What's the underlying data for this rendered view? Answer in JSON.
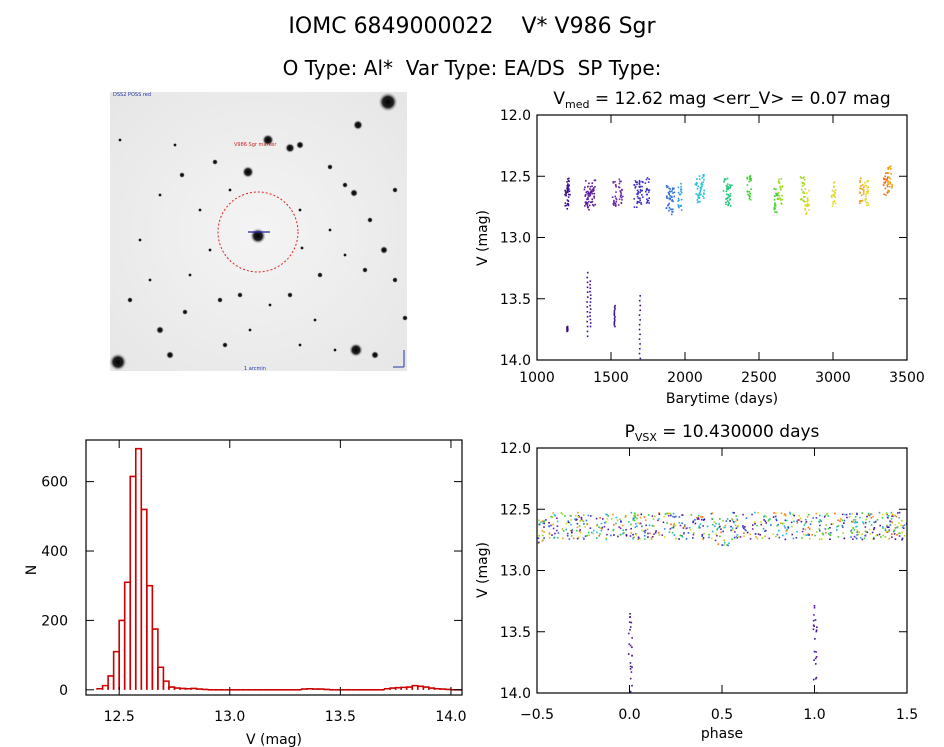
{
  "header": {
    "title_line1": "IOMC 6849000022    V* V986 Sgr",
    "title_line2": "O Type: Al*  Var Type: EA/DS  SP Type:"
  },
  "finder": {
    "label_tl": "DSS2 POSS red",
    "label_center": "V986 Sgr marker",
    "label_bottom": "1 arcmin"
  },
  "colors": {
    "axis": "#000000",
    "hist": "#cc0000",
    "palette": [
      "#3b0f8f",
      "#5a1a9e",
      "#6e2aa8",
      "#3a30c8",
      "#2f6fd8",
      "#2a9fe6",
      "#20c0d8",
      "#22c87a",
      "#3cd02a",
      "#9ad81c",
      "#e0d81a",
      "#f0a010",
      "#f07010"
    ]
  },
  "chart_data": [
    {
      "id": "lightcurve",
      "type": "scatter",
      "title_prefix": "V",
      "title_sub": "med",
      "title_rest": " = 12.62 mag <err_V> = 0.07 mag",
      "xlabel": "Barytime (days)",
      "ylabel": "V (mag)",
      "xlim": [
        1000,
        3500
      ],
      "ylim": [
        14.0,
        12.0
      ],
      "xticks": [
        1000,
        1500,
        2000,
        2500,
        3000,
        3500
      ],
      "yticks": [
        "12.0",
        "12.5",
        "13.0",
        "13.5",
        "14.0"
      ],
      "segments": [
        {
          "x": 1195,
          "y": 12.65,
          "c": 0
        },
        {
          "x": 1205,
          "y": 12.62,
          "c": 0
        },
        {
          "x": 1330,
          "y": 12.64,
          "c": 1
        },
        {
          "x": 1350,
          "y": 12.66,
          "c": 1
        },
        {
          "x": 1375,
          "y": 12.63,
          "c": 1
        },
        {
          "x": 1520,
          "y": 12.63,
          "c": 2
        },
        {
          "x": 1560,
          "y": 12.62,
          "c": 2
        },
        {
          "x": 1665,
          "y": 12.64,
          "c": 3
        },
        {
          "x": 1700,
          "y": 12.63,
          "c": 3
        },
        {
          "x": 1740,
          "y": 12.61,
          "c": 3
        },
        {
          "x": 1880,
          "y": 12.68,
          "c": 4
        },
        {
          "x": 1910,
          "y": 12.7,
          "c": 4
        },
        {
          "x": 1960,
          "y": 12.66,
          "c": 5
        },
        {
          "x": 2080,
          "y": 12.6,
          "c": 6
        },
        {
          "x": 2110,
          "y": 12.58,
          "c": 6
        },
        {
          "x": 2270,
          "y": 12.62,
          "c": 7
        },
        {
          "x": 2300,
          "y": 12.64,
          "c": 7
        },
        {
          "x": 2430,
          "y": 12.6,
          "c": 8
        },
        {
          "x": 2610,
          "y": 12.7,
          "c": 8
        },
        {
          "x": 2640,
          "y": 12.62,
          "c": 9
        },
        {
          "x": 2790,
          "y": 12.6,
          "c": 9
        },
        {
          "x": 2820,
          "y": 12.7,
          "c": 10
        },
        {
          "x": 3000,
          "y": 12.64,
          "c": 10
        },
        {
          "x": 3190,
          "y": 12.62,
          "c": 11
        },
        {
          "x": 3220,
          "y": 12.63,
          "c": 10
        },
        {
          "x": 3350,
          "y": 12.56,
          "c": 12
        },
        {
          "x": 3380,
          "y": 12.52,
          "c": 11
        }
      ],
      "dips": [
        {
          "x": 1200,
          "ytop": 13.72,
          "ybot": 13.76
        },
        {
          "x": 1335,
          "ytop": 13.28,
          "ybot": 13.8
        },
        {
          "x": 1355,
          "ytop": 13.35,
          "ybot": 13.72
        },
        {
          "x": 1520,
          "ytop": 13.55,
          "ybot": 13.72
        },
        {
          "x": 1690,
          "ytop": 13.47,
          "ybot": 13.98
        }
      ]
    },
    {
      "id": "histogram",
      "type": "bar",
      "xlabel": "V (mag)",
      "ylabel": "N",
      "xlim": [
        12.35,
        14.05
      ],
      "ylim": [
        -15,
        720
      ],
      "xticks": [
        "12.5",
        "13.0",
        "13.5",
        "14.0"
      ],
      "yticks": [
        0,
        200,
        400,
        600
      ],
      "bin_start": 12.4,
      "bin_width": 0.025,
      "values": [
        3,
        12,
        40,
        110,
        200,
        310,
        615,
        695,
        520,
        300,
        175,
        65,
        25,
        8,
        5,
        4,
        3,
        4,
        2,
        1,
        0,
        0,
        0,
        0,
        0,
        0,
        0,
        0,
        0,
        0,
        0,
        0,
        0,
        0,
        0,
        0,
        0,
        2,
        3,
        2,
        2,
        1,
        0,
        0,
        0,
        0,
        0,
        0,
        0,
        0,
        0,
        0,
        3,
        5,
        6,
        7,
        8,
        12,
        10,
        8,
        5,
        3,
        2,
        1,
        0,
        0
      ]
    },
    {
      "id": "phased",
      "type": "scatter",
      "title_prefix": "P",
      "title_sub": "VSX",
      "title_rest": " = 10.430000 days",
      "xlabel": "phase",
      "ylabel": "V (mag)",
      "xlim": [
        -0.5,
        1.5
      ],
      "ylim": [
        14.0,
        12.0
      ],
      "xticks": [
        "−0.5",
        "0.0",
        "0.5",
        "1.0",
        "1.5"
      ],
      "yticks": [
        "12.0",
        "12.5",
        "13.0",
        "13.5",
        "14.0"
      ],
      "secondary_minimum": {
        "phase": 0.5,
        "depth": 0.05
      },
      "primary_dips": [
        {
          "phase": 0.0,
          "ytop": 13.28,
          "ybot": 14.0
        },
        {
          "phase": 1.0,
          "ytop": 13.28,
          "ybot": 14.0
        }
      ]
    }
  ]
}
